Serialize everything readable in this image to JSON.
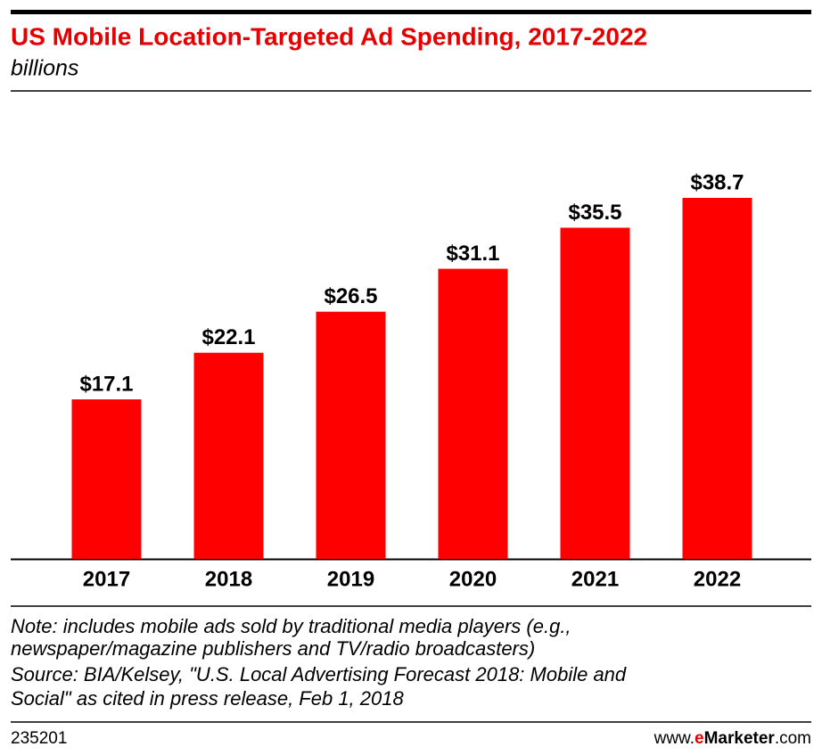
{
  "chart_data": {
    "type": "bar",
    "title": "US Mobile Location-Targeted Ad Spending, 2017-2022",
    "subtitle": "billions",
    "categories": [
      "2017",
      "2018",
      "2019",
      "2020",
      "2021",
      "2022"
    ],
    "values": [
      17.1,
      22.1,
      26.5,
      31.1,
      35.5,
      38.7
    ],
    "value_labels": [
      "$17.1",
      "$22.1",
      "$26.5",
      "$31.1",
      "$35.5",
      "$38.7"
    ],
    "color": "#ff0000",
    "notes": [
      "Note: includes mobile ads sold by traditional media players (e.g.,",
      "newspaper/magazine publishers and TV/radio broadcasters)",
      "Source: BIA/Kelsey, \"U.S. Local Advertising Forecast 2018: Mobile and",
      "Social\" as cited in press release, Feb 1, 2018"
    ],
    "chart_id": "235201",
    "site": {
      "prefix": "www.",
      "e": "e",
      "brand": "Marketer",
      "suffix": ".com"
    }
  }
}
